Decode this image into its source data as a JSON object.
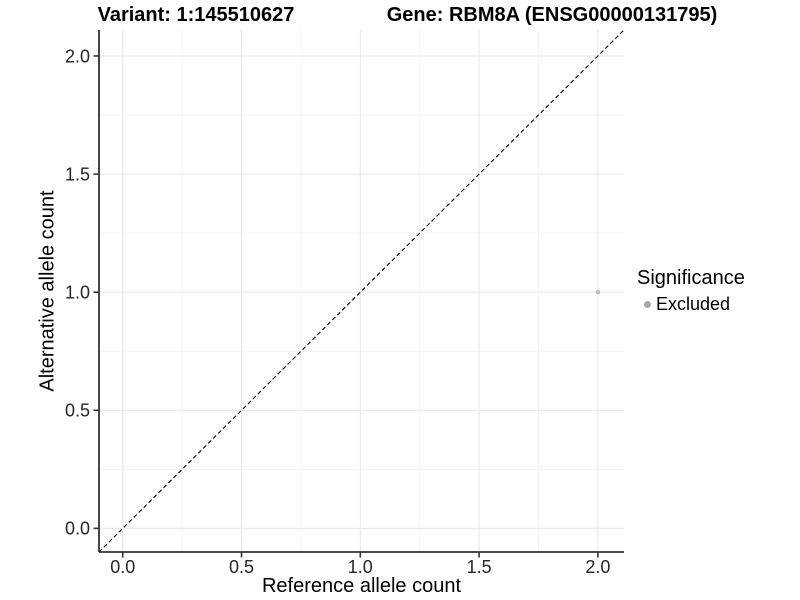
{
  "header": {
    "variant_title": "Variant: 1:145510627",
    "gene_title": "Gene: RBM8A (ENSG00000131795)"
  },
  "legend": {
    "title": "Significance",
    "items": [
      {
        "label": "Excluded",
        "color": "#a9a9a9"
      }
    ]
  },
  "chart_data": {
    "type": "scatter",
    "title_left": "Variant: 1:145510627",
    "title_right": "Gene: RBM8A (ENSG00000131795)",
    "xlabel": "Reference allele count",
    "ylabel": "Alternative allele count",
    "xlim": [
      -0.1,
      2.11
    ],
    "ylim": [
      -0.1,
      2.11
    ],
    "x_major_ticks": [
      0,
      0.5,
      1.0,
      1.5,
      2.0
    ],
    "x_tick_labels": [
      "0.0",
      "0.5",
      "1.0",
      "1.5",
      "2.0"
    ],
    "y_major_ticks": [
      0,
      0.5,
      1.0,
      1.5,
      2.0
    ],
    "y_tick_labels": [
      "0.0",
      "0.5",
      "1.0",
      "1.5",
      "2.0"
    ],
    "x_minor_ticks": [
      0.25,
      0.75,
      1.25,
      1.75
    ],
    "y_minor_ticks": [
      0.25,
      0.75,
      1.25,
      1.75
    ],
    "grid": true,
    "legend_position": "right",
    "legend_title": "Significance",
    "series": [
      {
        "name": "Excluded",
        "color": "#bdbdbd",
        "point_radius": 2.2,
        "points": [
          {
            "x": 2.0,
            "y": 1.0
          }
        ]
      }
    ],
    "reference_line": {
      "type": "identity",
      "from": {
        "x": 0,
        "y": 0
      },
      "to": {
        "x": 2,
        "y": 2
      },
      "style": "dashed",
      "color": "#000000"
    },
    "colors": {
      "grid_major": "#e6e6e6",
      "grid_minor": "#f3f3f3",
      "axis": "#333333",
      "tick_text": "#262626",
      "background": "#ffffff"
    }
  }
}
